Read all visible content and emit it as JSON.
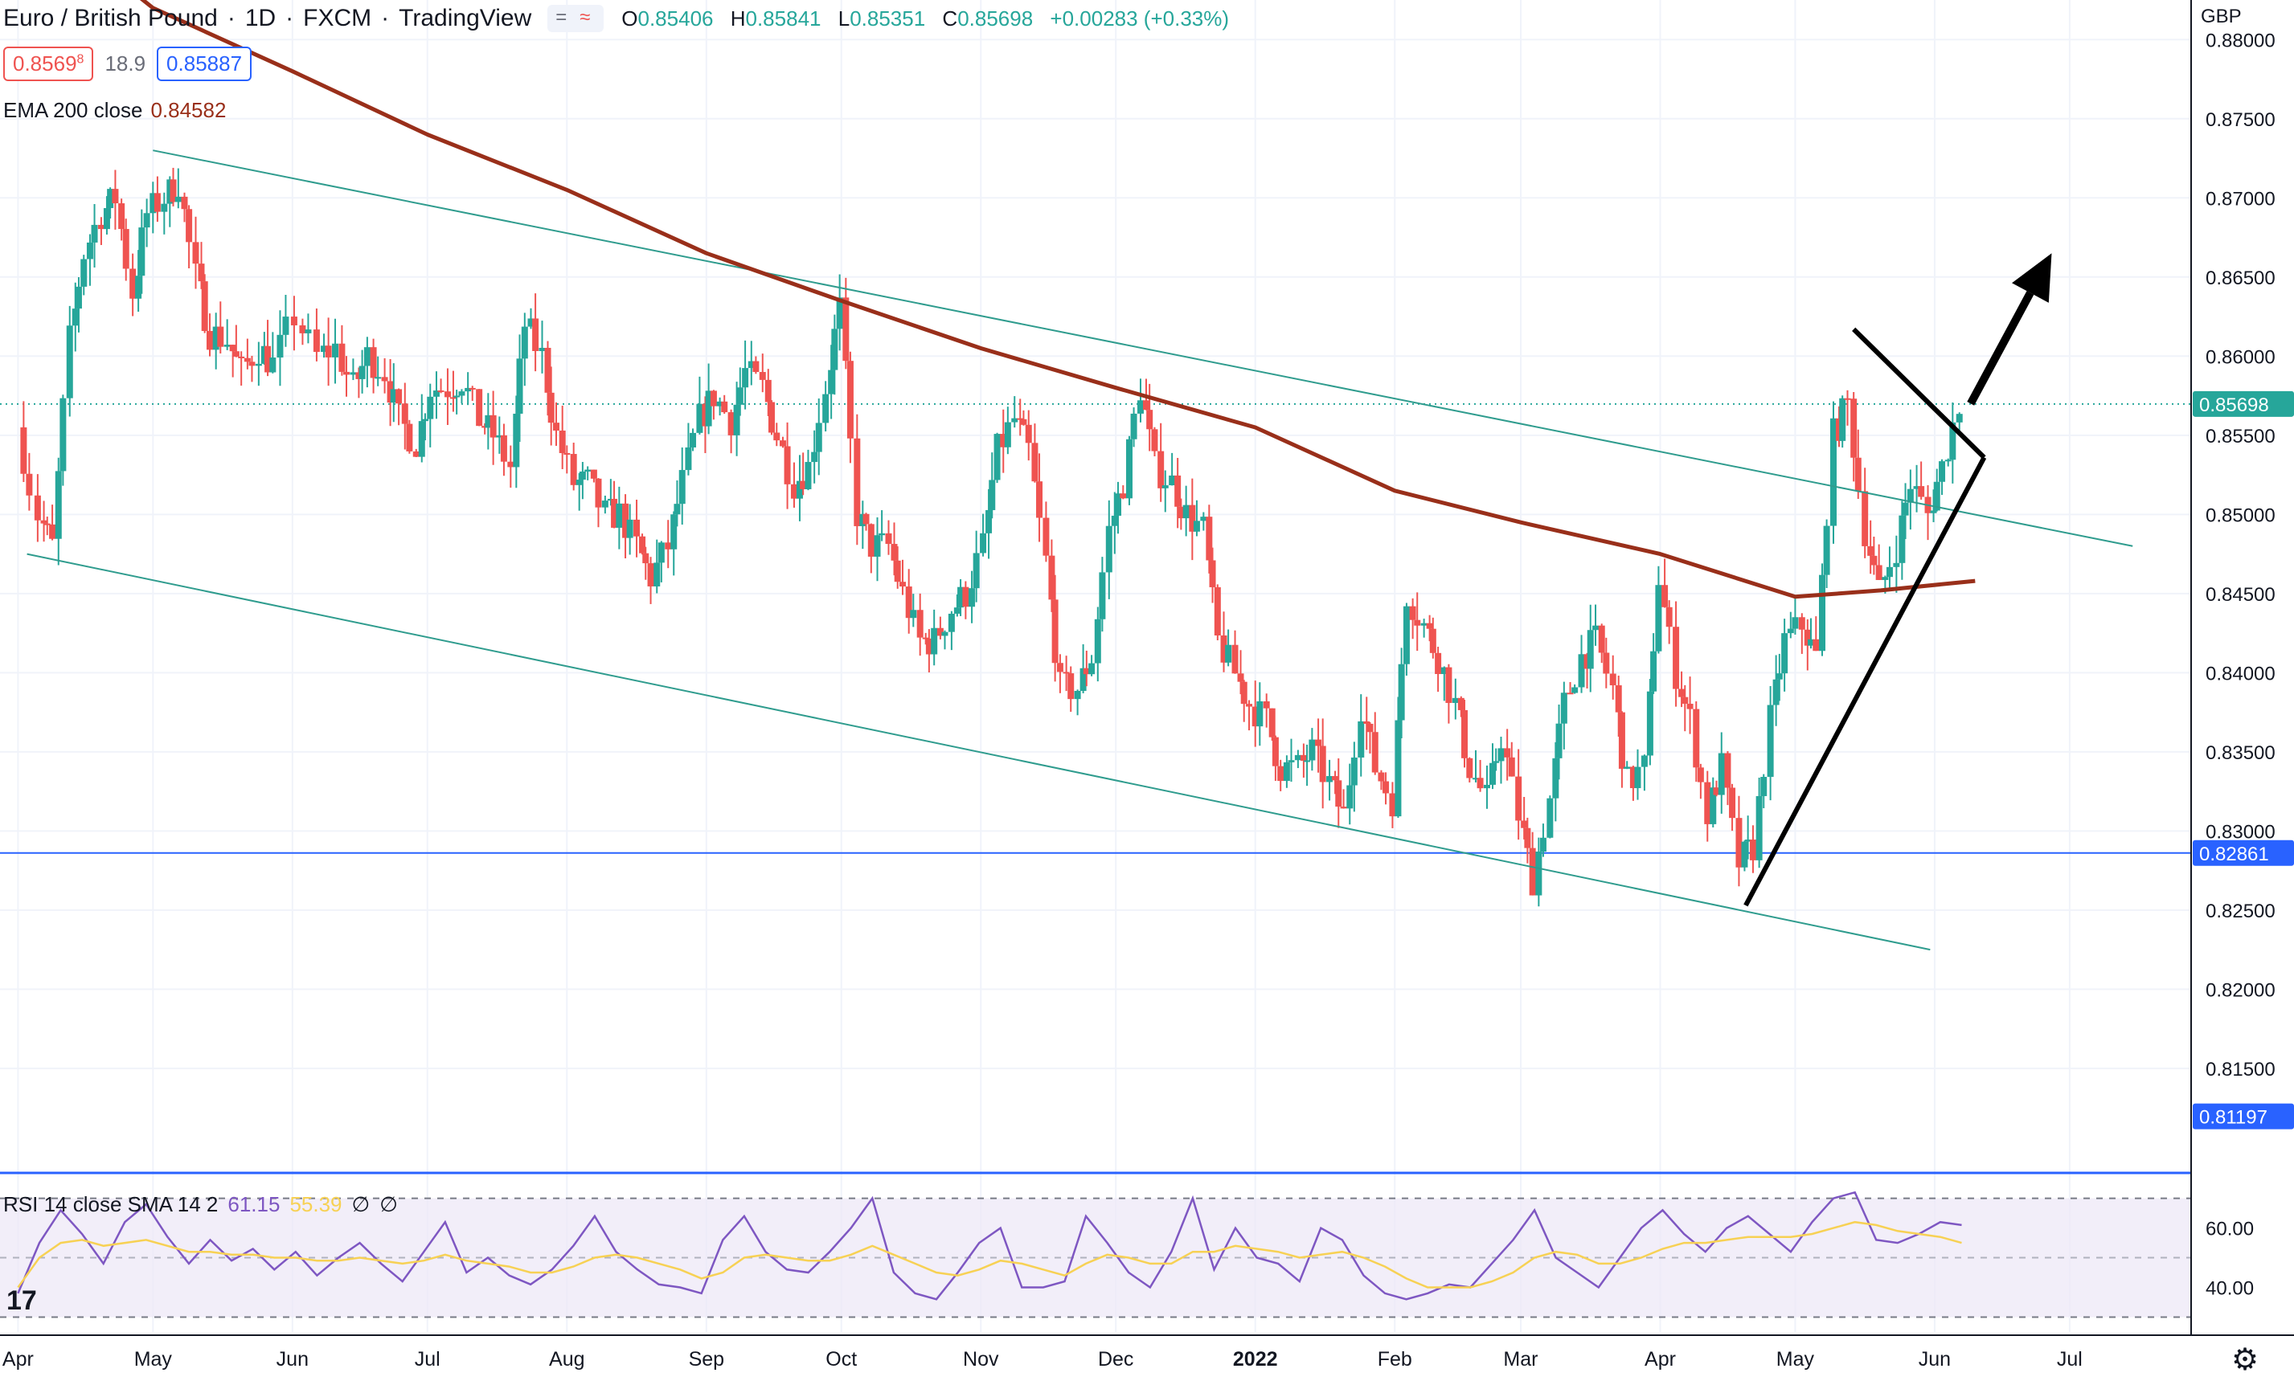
{
  "header": {
    "symbol": "Euro / British Pound",
    "sep": "·",
    "interval": "1D",
    "exchange": "FXCM",
    "platform": "TradingView",
    "chip_icons": [
      "minus-icon",
      "wave-icon"
    ],
    "chip_glyph_1": "=",
    "chip_glyph_2": "≈",
    "ohlc": {
      "o_label": "O",
      "o": "0.85406",
      "h_label": "H",
      "h": "0.85841",
      "l_label": "L",
      "l": "0.85351",
      "c_label": "C",
      "c": "0.85698",
      "change": "+0.00283 (+0.33%)"
    }
  },
  "price_boxes": {
    "sell": "0.8569",
    "sell_sup": "8",
    "spread": "18.9",
    "buy": "0.85887"
  },
  "ema": {
    "label": "EMA 200 close",
    "value": "0.84582"
  },
  "rsi_legend": {
    "label": "RSI 14 close SMA 14 2",
    "rsi": "61.15",
    "sma": "55.39",
    "na1": "∅",
    "na2": "∅"
  },
  "currency": "GBP",
  "colors": {
    "up": "#26a69a",
    "down": "#ef5350",
    "ema": "#992f1a",
    "channel": "#2f9c8e",
    "hline": "#2962ff",
    "rsi": "#7e57c2",
    "rsi_sma": "#f7d154",
    "rsi_bg": "#ede7f6"
  },
  "chart_data": {
    "type": "candlestick",
    "symbol": "EURGBP",
    "y_ticks": [
      "0.88000",
      "0.87500",
      "0.87000",
      "0.86500",
      "0.86000",
      "0.85500",
      "0.85000",
      "0.84500",
      "0.84000",
      "0.83500",
      "0.83000",
      "0.82500",
      "0.82000",
      "0.81500"
    ],
    "ylim": [
      0.8085,
      0.8825
    ],
    "x_labels": [
      "Apr",
      "May",
      "Jun",
      "Jul",
      "Aug",
      "Sep",
      "Oct",
      "Nov",
      "Dec",
      "2022",
      "Feb",
      "Mar",
      "Apr",
      "May",
      "Jun",
      "Jul"
    ],
    "last_price": "0.85698",
    "hline_price": "0.82861",
    "hline2_price": "0.81197",
    "close_path": [
      [
        "2021-04-01",
        0.8555
      ],
      [
        "2021-04-06",
        0.85
      ],
      [
        "2021-04-09",
        0.848
      ],
      [
        "2021-04-13",
        0.861
      ],
      [
        "2021-04-16",
        0.8665
      ],
      [
        "2021-04-20",
        0.869
      ],
      [
        "2021-04-23",
        0.87
      ],
      [
        "2021-04-27",
        0.864
      ],
      [
        "2021-04-30",
        0.869
      ],
      [
        "2021-05-04",
        0.87
      ],
      [
        "2021-05-07",
        0.871
      ],
      [
        "2021-05-11",
        0.865
      ],
      [
        "2021-05-14",
        0.8615
      ],
      [
        "2021-05-18",
        0.861
      ],
      [
        "2021-05-21",
        0.859
      ],
      [
        "2021-05-25",
        0.8605
      ],
      [
        "2021-05-28",
        0.8595
      ],
      [
        "2021-06-02",
        0.8625
      ],
      [
        "2021-06-07",
        0.86
      ],
      [
        "2021-06-11",
        0.8605
      ],
      [
        "2021-06-15",
        0.858
      ],
      [
        "2021-06-18",
        0.86
      ],
      [
        "2021-06-22",
        0.859
      ],
      [
        "2021-06-25",
        0.856
      ],
      [
        "2021-06-29",
        0.8545
      ],
      [
        "2021-07-02",
        0.858
      ],
      [
        "2021-07-06",
        0.858
      ],
      [
        "2021-07-09",
        0.8585
      ],
      [
        "2021-07-13",
        0.856
      ],
      [
        "2021-07-16",
        0.855
      ],
      [
        "2021-07-20",
        0.853
      ],
      [
        "2021-07-23",
        0.862
      ],
      [
        "2021-07-27",
        0.86
      ],
      [
        "2021-07-30",
        0.855
      ],
      [
        "2021-08-03",
        0.852
      ],
      [
        "2021-08-06",
        0.852
      ],
      [
        "2021-08-10",
        0.85
      ],
      [
        "2021-08-13",
        0.85
      ],
      [
        "2021-08-17",
        0.848
      ],
      [
        "2021-08-20",
        0.846
      ],
      [
        "2021-08-24",
        0.848
      ],
      [
        "2021-08-27",
        0.852
      ],
      [
        "2021-08-31",
        0.856
      ],
      [
        "2021-09-03",
        0.8575
      ],
      [
        "2021-09-07",
        0.856
      ],
      [
        "2021-09-10",
        0.859
      ],
      [
        "2021-09-14",
        0.858
      ],
      [
        "2021-09-17",
        0.855
      ],
      [
        "2021-09-21",
        0.852
      ],
      [
        "2021-09-24",
        0.853
      ],
      [
        "2021-09-28",
        0.858
      ],
      [
        "2021-10-01",
        0.863
      ],
      [
        "2021-10-05",
        0.85
      ],
      [
        "2021-10-08",
        0.848
      ],
      [
        "2021-10-12",
        0.848
      ],
      [
        "2021-10-15",
        0.845
      ],
      [
        "2021-10-19",
        0.842
      ],
      [
        "2021-10-22",
        0.842
      ],
      [
        "2021-10-26",
        0.844
      ],
      [
        "2021-10-29",
        0.845
      ],
      [
        "2021-11-02",
        0.848
      ],
      [
        "2021-11-05",
        0.854
      ],
      [
        "2021-11-09",
        0.856
      ],
      [
        "2021-11-12",
        0.854
      ],
      [
        "2021-11-16",
        0.847
      ],
      [
        "2021-11-19",
        0.839
      ],
      [
        "2021-11-23",
        0.839
      ],
      [
        "2021-11-26",
        0.841
      ],
      [
        "2021-11-30",
        0.849
      ],
      [
        "2021-12-03",
        0.852
      ],
      [
        "2021-12-07",
        0.858
      ],
      [
        "2021-12-10",
        0.853
      ],
      [
        "2021-12-14",
        0.852
      ],
      [
        "2021-12-17",
        0.85
      ],
      [
        "2021-12-21",
        0.849
      ],
      [
        "2021-12-24",
        0.842
      ],
      [
        "2021-12-28",
        0.84
      ],
      [
        "2021-12-31",
        0.838
      ],
      [
        "2022-01-04",
        0.837
      ],
      [
        "2022-01-07",
        0.834
      ],
      [
        "2022-01-11",
        0.834
      ],
      [
        "2022-01-14",
        0.835
      ],
      [
        "2022-01-18",
        0.833
      ],
      [
        "2022-01-21",
        0.831
      ],
      [
        "2022-01-25",
        0.838
      ],
      [
        "2022-01-28",
        0.834
      ],
      [
        "2022-02-01",
        0.832
      ],
      [
        "2022-02-04",
        0.845
      ],
      [
        "2022-02-08",
        0.843
      ],
      [
        "2022-02-11",
        0.841
      ],
      [
        "2022-02-15",
        0.838
      ],
      [
        "2022-02-18",
        0.834
      ],
      [
        "2022-02-22",
        0.832
      ],
      [
        "2022-02-25",
        0.836
      ],
      [
        "2022-03-01",
        0.831
      ],
      [
        "2022-03-04",
        0.827
      ],
      [
        "2022-03-08",
        0.832
      ],
      [
        "2022-03-11",
        0.838
      ],
      [
        "2022-03-15",
        0.841
      ],
      [
        "2022-03-18",
        0.842
      ],
      [
        "2022-03-22",
        0.839
      ],
      [
        "2022-03-25",
        0.833
      ],
      [
        "2022-03-29",
        0.834
      ],
      [
        "2022-04-01",
        0.846
      ],
      [
        "2022-04-05",
        0.84
      ],
      [
        "2022-04-08",
        0.837
      ],
      [
        "2022-04-12",
        0.831
      ],
      [
        "2022-04-15",
        0.834
      ],
      [
        "2022-04-19",
        0.828
      ],
      [
        "2022-04-22",
        0.829
      ],
      [
        "2022-04-26",
        0.837
      ],
      [
        "2022-04-29",
        0.842
      ],
      [
        "2022-05-03",
        0.843
      ],
      [
        "2022-05-06",
        0.841
      ],
      [
        "2022-05-10",
        0.855
      ],
      [
        "2022-05-13",
        0.857
      ],
      [
        "2022-05-17",
        0.849
      ],
      [
        "2022-05-20",
        0.845
      ],
      [
        "2022-05-24",
        0.848
      ],
      [
        "2022-05-27",
        0.852
      ],
      [
        "2022-05-31",
        0.85
      ],
      [
        "2022-06-03",
        0.853
      ],
      [
        "2022-06-07",
        0.857
      ]
    ],
    "ema200": [
      [
        "2021-04-01",
        0.8888
      ],
      [
        "2021-05-01",
        0.882
      ],
      [
        "2021-06-01",
        0.878
      ],
      [
        "2021-07-01",
        0.874
      ],
      [
        "2021-08-01",
        0.8705
      ],
      [
        "2021-09-01",
        0.8665
      ],
      [
        "2021-10-01",
        0.8635
      ],
      [
        "2021-11-01",
        0.8605
      ],
      [
        "2021-12-01",
        0.858
      ],
      [
        "2022-01-01",
        0.8555
      ],
      [
        "2022-02-01",
        0.8515
      ],
      [
        "2022-03-01",
        0.8495
      ],
      [
        "2022-04-01",
        0.8475
      ],
      [
        "2022-05-01",
        0.8448
      ],
      [
        "2022-05-20",
        0.8452
      ],
      [
        "2022-06-10",
        0.8458
      ]
    ],
    "channel": {
      "upper": [
        [
          "2021-05-01",
          0.873
        ],
        [
          "2022-07-15",
          0.848
        ]
      ],
      "lower": [
        [
          "2021-04-03",
          0.8475
        ],
        [
          "2022-05-31",
          0.8225
        ]
      ]
    },
    "drawings": {
      "support_line": [
        [
          "2022-04-20",
          0.8253
        ],
        [
          "2022-06-12",
          0.8536
        ]
      ],
      "resistance_line": [
        [
          "2022-05-14",
          0.8617
        ],
        [
          "2022-06-12",
          0.8536
        ]
      ],
      "arrow": [
        [
          "2022-06-09",
          0.857
        ],
        [
          "2022-06-27",
          0.8665
        ]
      ]
    },
    "rsi": {
      "ylim": [
        25,
        78
      ],
      "band": [
        30,
        70
      ],
      "ticks": [
        "60.00",
        "40.00"
      ],
      "values": [
        38,
        55,
        66,
        58,
        48,
        62,
        68,
        57,
        48,
        56,
        49,
        53,
        46,
        52,
        44,
        50,
        55,
        48,
        42,
        52,
        62,
        45,
        50,
        44,
        41,
        46,
        54,
        64,
        52,
        46,
        41,
        40,
        38,
        56,
        64,
        52,
        46,
        45,
        52,
        60,
        70,
        45,
        38,
        36,
        45,
        55,
        60,
        40,
        40,
        42,
        64,
        55,
        45,
        40,
        52,
        70,
        46,
        60,
        50,
        48,
        42,
        60,
        56,
        44,
        38,
        36,
        38,
        41,
        40,
        48,
        56,
        66,
        50,
        45,
        40,
        50,
        60,
        66,
        58,
        52,
        60,
        64,
        58,
        52,
        62,
        70,
        72,
        56,
        55,
        58,
        62,
        61
      ]
    },
    "rsi_sma": [
      40,
      50,
      55,
      56,
      54,
      55,
      56,
      54,
      52,
      52,
      51,
      51,
      50,
      50,
      49,
      49,
      50,
      49,
      48,
      49,
      51,
      49,
      48,
      47,
      45,
      45,
      47,
      50,
      51,
      50,
      48,
      46,
      43,
      45,
      50,
      51,
      50,
      49,
      49,
      51,
      54,
      51,
      48,
      45,
      44,
      46,
      49,
      48,
      46,
      44,
      48,
      51,
      50,
      48,
      48,
      52,
      52,
      54,
      53,
      52,
      50,
      51,
      52,
      50,
      47,
      43,
      40,
      40,
      40,
      42,
      45,
      50,
      52,
      51,
      48,
      48,
      50,
      53,
      55,
      55,
      56,
      57,
      57,
      57,
      58,
      60,
      62,
      61,
      59,
      58,
      57,
      55
    ]
  }
}
